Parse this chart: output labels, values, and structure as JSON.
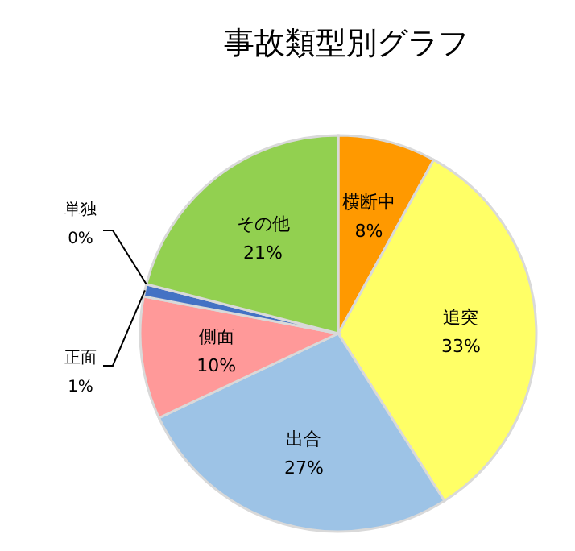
{
  "chart_data": {
    "type": "pie",
    "title": "事故類型別グラフ",
    "categories": [
      "横断中",
      "追突",
      "出合",
      "側面",
      "正面",
      "単独",
      "その他"
    ],
    "values": [
      8,
      33,
      27,
      10,
      1,
      0,
      21
    ],
    "colors": [
      "#ff9900",
      "#ffff66",
      "#9dc3e6",
      "#ff9999",
      "#4472c4",
      null,
      "#92d050"
    ],
    "value_labels": [
      "8%",
      "33%",
      "27%",
      "10%",
      "1%",
      "0%",
      "21%"
    ]
  }
}
